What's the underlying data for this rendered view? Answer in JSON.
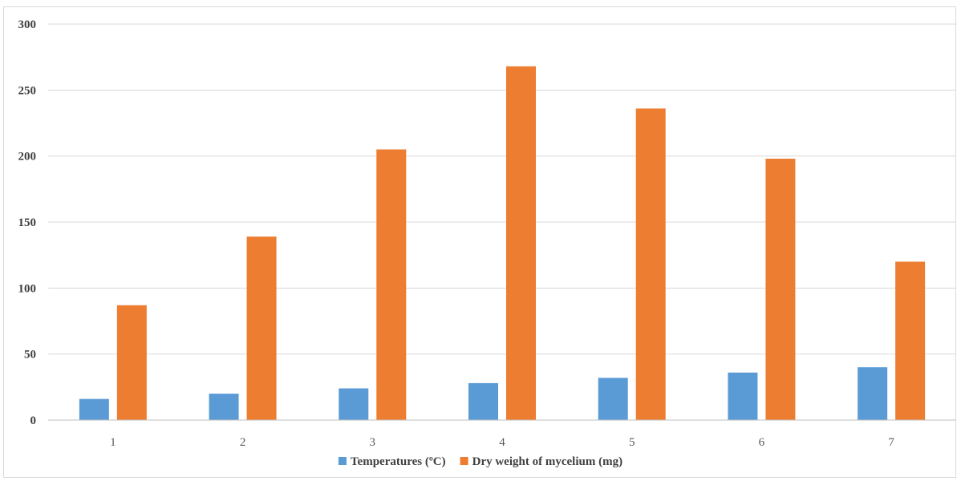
{
  "chart_data": {
    "type": "bar",
    "categories": [
      "1",
      "2",
      "3",
      "4",
      "5",
      "6",
      "7"
    ],
    "series": [
      {
        "name": "Temperatures (ºC)",
        "color": "#5b9bd5",
        "values": [
          16,
          20,
          24,
          28,
          32,
          36,
          40
        ]
      },
      {
        "name": "Dry weight of mycelium (mg)",
        "color": "#ed7d31",
        "values": [
          87,
          139,
          205,
          268,
          236,
          198,
          120
        ]
      }
    ],
    "title": "",
    "xlabel": "",
    "ylabel": "",
    "ylim": [
      0,
      300
    ],
    "yticks": [
      "0",
      "50",
      "100",
      "150",
      "200",
      "250",
      "300"
    ],
    "grid": true,
    "legend_position": "bottom"
  }
}
